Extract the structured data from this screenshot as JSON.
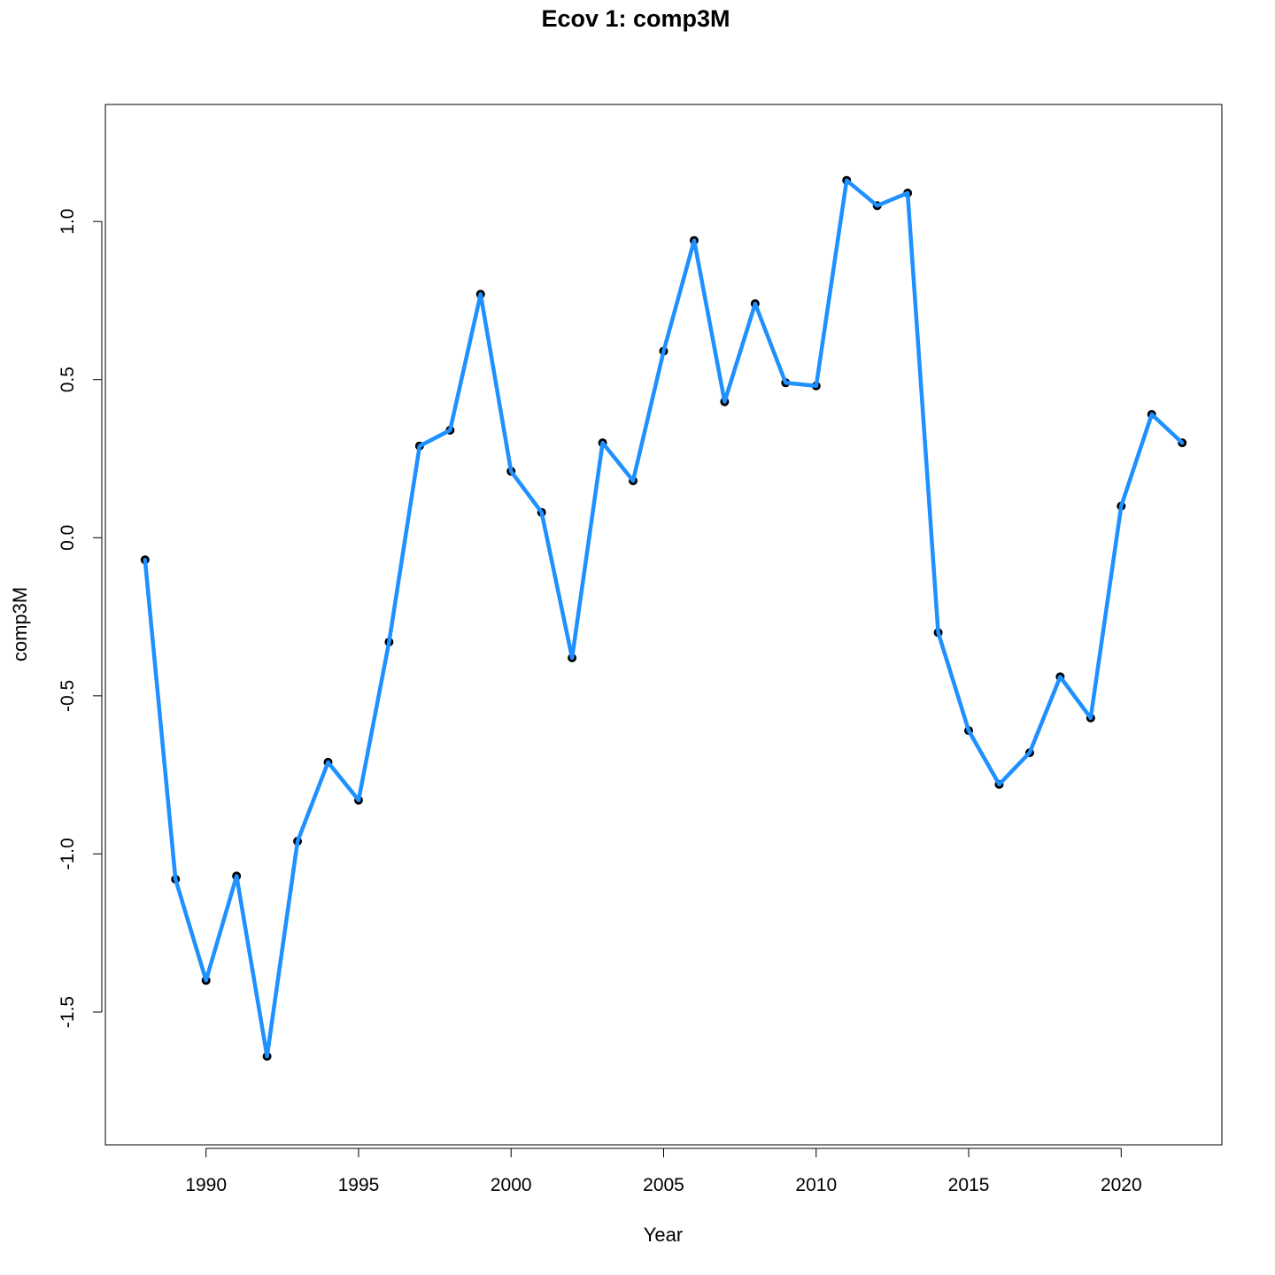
{
  "chart_data": {
    "type": "line",
    "title": "Ecov 1: comp3M",
    "xlabel": "Year",
    "ylabel": "comp3M",
    "xlim": [
      1986.7,
      2023.3
    ],
    "ylim": [
      -1.92,
      1.37
    ],
    "x_ticks": [
      1990,
      1995,
      2000,
      2005,
      2010,
      2015,
      2020
    ],
    "y_ticks": [
      -1.5,
      -1.0,
      -0.5,
      0.0,
      0.5,
      1.0
    ],
    "y_tick_labels": [
      "-1.5",
      "-1.0",
      "-0.5",
      "0.0",
      "0.5",
      "1.0"
    ],
    "grid": false,
    "series": [
      {
        "color": "#1E90FF",
        "marker_color": "#000000",
        "x": [
          1988,
          1989,
          1990,
          1991,
          1992,
          1993,
          1994,
          1995,
          1996,
          1997,
          1998,
          1999,
          2000,
          2001,
          2002,
          2003,
          2004,
          2005,
          2006,
          2007,
          2008,
          2009,
          2010,
          2011,
          2012,
          2013,
          2014,
          2015,
          2016,
          2017,
          2018,
          2019,
          2020,
          2021,
          2022
        ],
        "y": [
          -0.07,
          -1.08,
          -1.4,
          -1.07,
          -1.64,
          -0.96,
          -0.71,
          -0.83,
          -0.33,
          0.29,
          0.34,
          0.77,
          0.21,
          0.08,
          -0.38,
          0.3,
          0.18,
          0.59,
          0.94,
          0.43,
          0.74,
          0.49,
          0.48,
          1.13,
          1.05,
          1.09,
          -0.3,
          -0.61,
          -0.78,
          -0.68,
          -0.44,
          -0.57,
          0.1,
          0.39,
          0.3
        ]
      }
    ]
  }
}
